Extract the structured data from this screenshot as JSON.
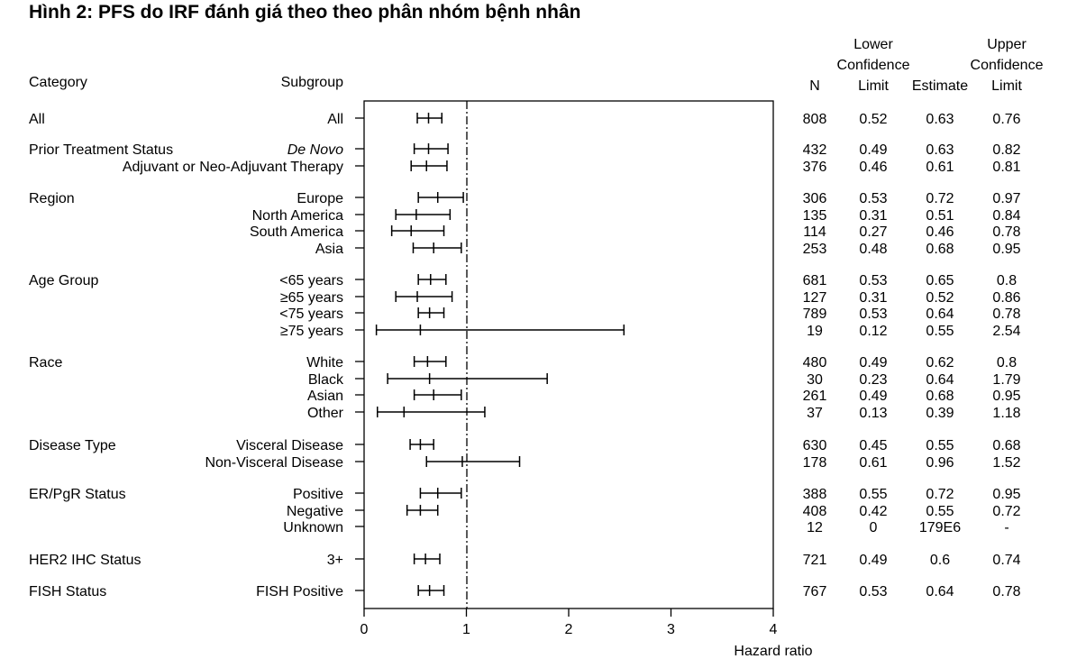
{
  "title": "Hình 2: PFS do IRF đánh giá theo theo phân nhóm bệnh nhân",
  "headers": {
    "category": "Category",
    "subgroup": "Subgroup",
    "n": "N",
    "lower": [
      "Lower",
      "Confidence",
      "Limit"
    ],
    "estimate": "Estimate",
    "upper": [
      "Upper",
      "Confidence",
      "Limit"
    ]
  },
  "chart_data": {
    "type": "forest",
    "xlabel": "Hazard ratio",
    "xlim": [
      0,
      4
    ],
    "xticks": [
      0,
      1,
      2,
      3,
      4
    ],
    "reference_line": 1,
    "rows": [
      {
        "category": "All",
        "subgroup": "All",
        "n": "808",
        "lcl": "0.52",
        "est": "0.63",
        "ucl": "0.76",
        "lo": 0.52,
        "hr": 0.63,
        "hi": 0.76
      },
      {
        "category": "Prior Treatment Status",
        "subgroup": "De Novo",
        "italic": true,
        "n": "432",
        "lcl": "0.49",
        "est": "0.63",
        "ucl": "0.82",
        "lo": 0.49,
        "hr": 0.63,
        "hi": 0.82
      },
      {
        "category": "",
        "subgroup": "Adjuvant or Neo-Adjuvant Therapy",
        "n": "376",
        "lcl": "0.46",
        "est": "0.61",
        "ucl": "0.81",
        "lo": 0.46,
        "hr": 0.61,
        "hi": 0.81
      },
      {
        "category": "Region",
        "subgroup": "Europe",
        "n": "306",
        "lcl": "0.53",
        "est": "0.72",
        "ucl": "0.97",
        "lo": 0.53,
        "hr": 0.72,
        "hi": 0.97
      },
      {
        "category": "",
        "subgroup": "North America",
        "n": "135",
        "lcl": "0.31",
        "est": "0.51",
        "ucl": "0.84",
        "lo": 0.31,
        "hr": 0.51,
        "hi": 0.84
      },
      {
        "category": "",
        "subgroup": "South America",
        "n": "114",
        "lcl": "0.27",
        "est": "0.46",
        "ucl": "0.78",
        "lo": 0.27,
        "hr": 0.46,
        "hi": 0.78
      },
      {
        "category": "",
        "subgroup": "Asia",
        "n": "253",
        "lcl": "0.48",
        "est": "0.68",
        "ucl": "0.95",
        "lo": 0.48,
        "hr": 0.68,
        "hi": 0.95
      },
      {
        "category": "Age Group",
        "subgroup": "<65 years",
        "n": "681",
        "lcl": "0.53",
        "est": "0.65",
        "ucl": "0.8",
        "lo": 0.53,
        "hr": 0.65,
        "hi": 0.8
      },
      {
        "category": "",
        "subgroup": "≥65 years",
        "n": "127",
        "lcl": "0.31",
        "est": "0.52",
        "ucl": "0.86",
        "lo": 0.31,
        "hr": 0.52,
        "hi": 0.86
      },
      {
        "category": "",
        "subgroup": "<75 years",
        "n": "789",
        "lcl": "0.53",
        "est": "0.64",
        "ucl": "0.78",
        "lo": 0.53,
        "hr": 0.64,
        "hi": 0.78
      },
      {
        "category": "",
        "subgroup": "≥75 years",
        "n": "19",
        "lcl": "0.12",
        "est": "0.55",
        "ucl": "2.54",
        "lo": 0.12,
        "hr": 0.55,
        "hi": 2.54
      },
      {
        "category": "Race",
        "subgroup": "White",
        "n": "480",
        "lcl": "0.49",
        "est": "0.62",
        "ucl": "0.8",
        "lo": 0.49,
        "hr": 0.62,
        "hi": 0.8
      },
      {
        "category": "",
        "subgroup": "Black",
        "n": "30",
        "lcl": "0.23",
        "est": "0.64",
        "ucl": "1.79",
        "lo": 0.23,
        "hr": 0.64,
        "hi": 1.79
      },
      {
        "category": "",
        "subgroup": "Asian",
        "n": "261",
        "lcl": "0.49",
        "est": "0.68",
        "ucl": "0.95",
        "lo": 0.49,
        "hr": 0.68,
        "hi": 0.95
      },
      {
        "category": "",
        "subgroup": "Other",
        "n": "37",
        "lcl": "0.13",
        "est": "0.39",
        "ucl": "1.18",
        "lo": 0.13,
        "hr": 0.39,
        "hi": 1.18
      },
      {
        "category": "Disease Type",
        "subgroup": "Visceral Disease",
        "n": "630",
        "lcl": "0.45",
        "est": "0.55",
        "ucl": "0.68",
        "lo": 0.45,
        "hr": 0.55,
        "hi": 0.68
      },
      {
        "category": "",
        "subgroup": "Non-Visceral Disease",
        "n": "178",
        "lcl": "0.61",
        "est": "0.96",
        "ucl": "1.52",
        "lo": 0.61,
        "hr": 0.96,
        "hi": 1.52
      },
      {
        "category": "ER/PgR Status",
        "subgroup": "Positive",
        "n": "388",
        "lcl": "0.55",
        "est": "0.72",
        "ucl": "0.95",
        "lo": 0.55,
        "hr": 0.72,
        "hi": 0.95
      },
      {
        "category": "",
        "subgroup": "Negative",
        "n": "408",
        "lcl": "0.42",
        "est": "0.55",
        "ucl": "0.72",
        "lo": 0.42,
        "hr": 0.55,
        "hi": 0.72
      },
      {
        "category": "",
        "subgroup": "Unknown",
        "n": "12",
        "lcl": "0",
        "est": "179E6",
        "ucl": "-",
        "lo": null,
        "hr": null,
        "hi": null
      },
      {
        "category": "HER2 IHC Status",
        "subgroup": "3+",
        "n": "721",
        "lcl": "0.49",
        "est": "0.6",
        "ucl": "0.74",
        "lo": 0.49,
        "hr": 0.6,
        "hi": 0.74
      },
      {
        "category": "FISH Status",
        "subgroup": "FISH Positive",
        "n": "767",
        "lcl": "0.53",
        "est": "0.64",
        "ucl": "0.78",
        "lo": 0.53,
        "hr": 0.64,
        "hi": 0.78
      }
    ]
  }
}
